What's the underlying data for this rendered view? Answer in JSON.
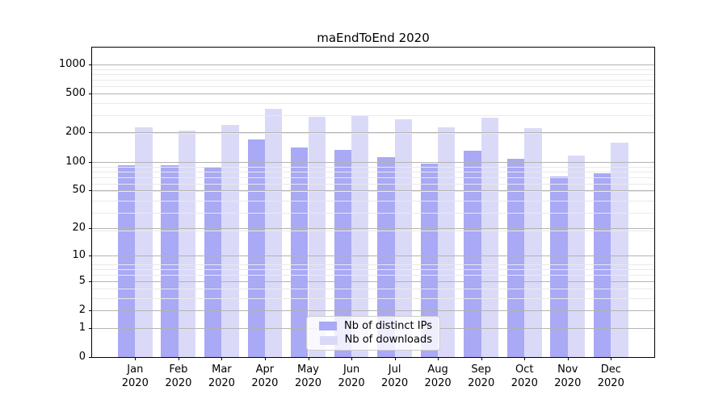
{
  "chart_data": {
    "type": "bar",
    "title": "maEndToEnd 2020",
    "scale": "symlog (position proportional to log10(1+y), 0 at baseline)",
    "year": "2020",
    "categories": [
      {
        "month": "Jan",
        "year": "2020"
      },
      {
        "month": "Feb",
        "year": "2020"
      },
      {
        "month": "Mar",
        "year": "2020"
      },
      {
        "month": "Apr",
        "year": "2020"
      },
      {
        "month": "May",
        "year": "2020"
      },
      {
        "month": "Jun",
        "year": "2020"
      },
      {
        "month": "Jul",
        "year": "2020"
      },
      {
        "month": "Aug",
        "year": "2020"
      },
      {
        "month": "Sep",
        "year": "2020"
      },
      {
        "month": "Oct",
        "year": "2020"
      },
      {
        "month": "Nov",
        "year": "2020"
      },
      {
        "month": "Dec",
        "year": "2020"
      }
    ],
    "series": [
      {
        "name": "Nb of distinct IPs",
        "color": "#a9a9f5",
        "values": [
          91,
          91,
          89,
          171,
          139,
          131,
          111,
          95,
          129,
          108,
          70,
          75
        ]
      },
      {
        "name": "Nb of downloads",
        "color": "#dadaf8",
        "values": [
          226,
          211,
          237,
          352,
          292,
          299,
          274,
          226,
          285,
          222,
          115,
          156
        ]
      }
    ],
    "yticks": [
      0,
      1,
      2,
      5,
      10,
      20,
      50,
      100,
      200,
      500,
      1000
    ],
    "ytick_labels": [
      "0",
      "1",
      "2",
      "5",
      "10",
      "20",
      "50",
      "100",
      "200",
      "500",
      "1000"
    ],
    "ylim": [
      0,
      1500
    ],
    "xlabel": "",
    "ylabel": "",
    "grid": true,
    "legend_position": "lower-center",
    "colors": {
      "background": "#ffffff",
      "major_grid": "#b3b3b3",
      "minor_grid": "#e9e9e9",
      "spine": "#000000",
      "text": "#000000",
      "legend_border": "#cccccc",
      "legend_background": "rgba(255,255,255,0.8)"
    }
  }
}
